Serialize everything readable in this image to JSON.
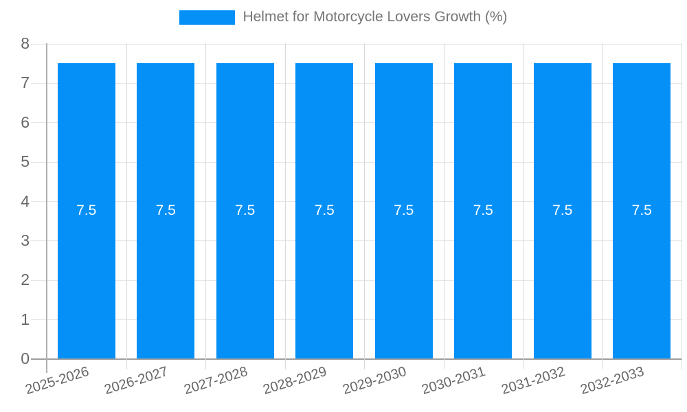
{
  "legend": {
    "label": "Helmet for Motorcycle Lovers Growth (%)"
  },
  "colors": {
    "bar": "#0590f8",
    "bar_label": "#ffffff",
    "grid_horizontal": "#e6e6e6",
    "grid_vertical": "#d9d9d9",
    "baseline": "#9e9e9e",
    "axis_line": "#b0b0b0",
    "axis_text": "#666666",
    "legend_text": "#757575"
  },
  "chart_data": {
    "type": "bar",
    "title": "Helmet for Motorcycle Lovers Growth (%)",
    "categories": [
      "2025-2026",
      "2026-2027",
      "2027-2028",
      "2028-2029",
      "2029-2030",
      "2030-2031",
      "2031-2032",
      "2032-2033"
    ],
    "values": [
      7.5,
      7.5,
      7.5,
      7.5,
      7.5,
      7.5,
      7.5,
      7.5
    ],
    "data_labels": [
      "7.5",
      "7.5",
      "7.5",
      "7.5",
      "7.5",
      "7.5",
      "7.5",
      "7.5"
    ],
    "xlabel": "",
    "ylabel": "",
    "ylim": [
      0,
      8
    ],
    "yticks": [
      0,
      1,
      2,
      3,
      4,
      5,
      6,
      7,
      8
    ],
    "grid": true,
    "legend_position": "top",
    "x_tick_rotation_deg": -17
  }
}
